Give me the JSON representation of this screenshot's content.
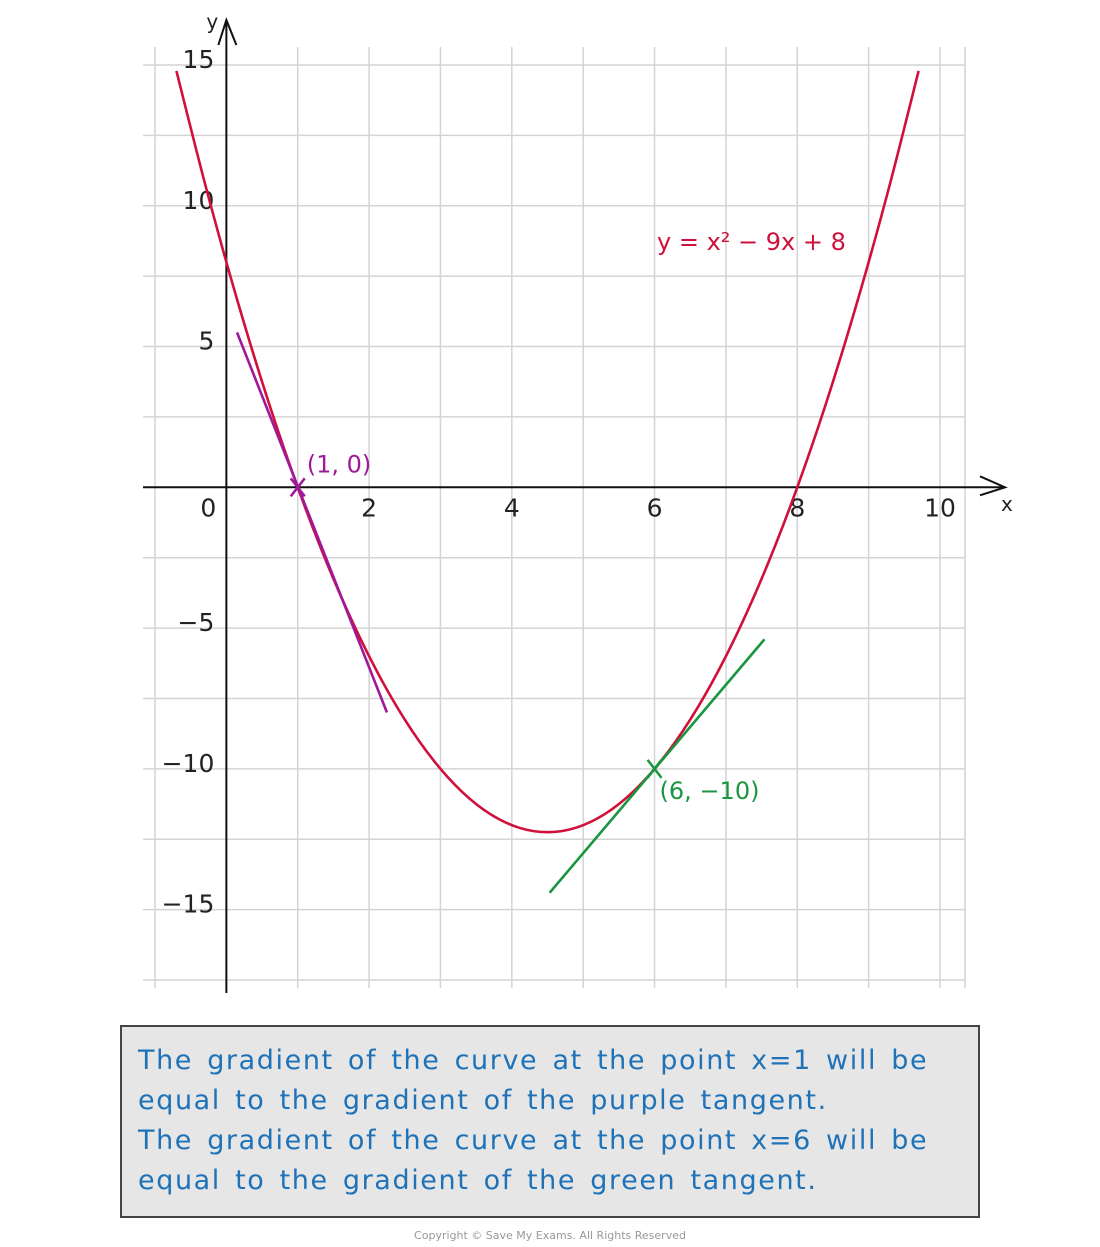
{
  "chart_data": {
    "type": "line",
    "xlabel": "x",
    "ylabel": "y",
    "xlim": [
      -1,
      10.35
    ],
    "ylim": [
      -17.5,
      15
    ],
    "xticks": [
      0,
      2,
      4,
      6,
      8,
      10
    ],
    "yticks": [
      15,
      10,
      5,
      {
        "value": -5,
        "label": "−5"
      },
      {
        "value": -10,
        "label": "−10"
      },
      {
        "value": -15,
        "label": "−15"
      }
    ],
    "xgrid": [
      -1,
      0,
      1,
      2,
      3,
      4,
      5,
      6,
      7,
      8,
      9,
      10,
      10.35
    ],
    "ygrid": [
      15,
      12.5,
      10,
      7.5,
      5,
      2.5,
      0,
      -2.5,
      -5,
      -7.5,
      -10,
      -12.5,
      -15,
      -17.5
    ],
    "grid": true,
    "series": [
      {
        "name": "y = x² − 9x + 8",
        "color": "#d0103a",
        "x": [
          -0.7,
          -0.3,
          0.1,
          0.5,
          0.9,
          1.3,
          1.7,
          2.1,
          2.5,
          2.9,
          3.3,
          3.7,
          4.1,
          4.5,
          4.9,
          5.3,
          5.7,
          6.1,
          6.5,
          6.9,
          7.3,
          7.7,
          8.1,
          8.5,
          8.9,
          9.3,
          9.7
        ],
        "values": [
          14.79,
          10.79,
          7.11,
          3.75,
          0.71,
          -2.01,
          -4.41,
          -6.49,
          -8.25,
          -9.69,
          -10.81,
          -11.61,
          -12.09,
          -12.25,
          -12.09,
          -11.61,
          -10.81,
          -9.69,
          -8.25,
          -6.49,
          -4.41,
          -2.01,
          0.71,
          3.75,
          7.11,
          10.79,
          14.79
        ]
      },
      {
        "color": "#a0189a",
        "x": [
          0.15,
          2.25
        ],
        "values": [
          5.5,
          -8
        ]
      },
      {
        "color": "#1a9641",
        "x": [
          4.53,
          7.54
        ],
        "values": [
          -14.4,
          -5.4
        ]
      }
    ],
    "annotations": [
      {
        "text": "(1, 0)",
        "x": 1,
        "y": 0,
        "color": "#a0189a"
      },
      {
        "text": "(6, −10)",
        "x": 6,
        "y": -10,
        "color": "#1a9641"
      }
    ]
  },
  "note": {
    "lines": [
      "The gradient of the curve at the point x=1 will be",
      "equal to the gradient of the purple tangent.",
      "The gradient of the curve at the point x=6 will be",
      "equal to the gradient of the green tangent."
    ]
  },
  "footer": "Copyright © Save My Exams. All Rights Reserved"
}
